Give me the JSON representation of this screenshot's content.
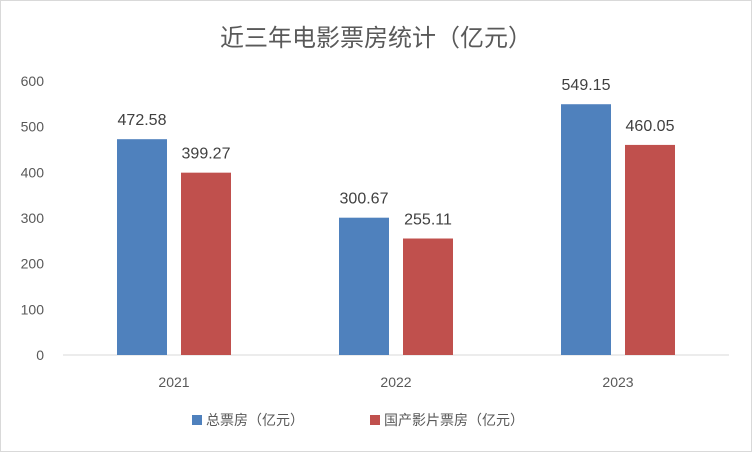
{
  "chart_data": {
    "type": "bar",
    "title": "近三年电影票房统计（亿元）",
    "categories": [
      "2021",
      "2022",
      "2023"
    ],
    "series": [
      {
        "name": "总票房（亿元）",
        "values": [
          472.58,
          300.67,
          549.15
        ],
        "color": "#4f81bd"
      },
      {
        "name": "国产影片票房（亿元）",
        "values": [
          399.27,
          255.11,
          460.05
        ],
        "color": "#c0504d"
      }
    ],
    "yticks": [
      "0",
      "100",
      "200",
      "300",
      "400",
      "500",
      "600"
    ],
    "ylim": [
      0,
      600
    ],
    "grid": false,
    "legend_position": "bottom"
  }
}
